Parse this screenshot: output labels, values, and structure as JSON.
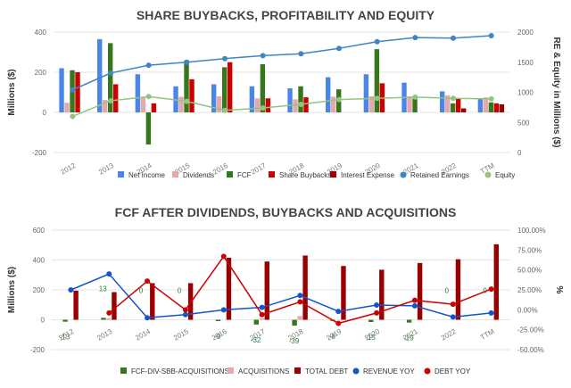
{
  "chart_data": [
    {
      "type": "bar",
      "title": "SHARE BUYBACKS, PROFITABILITY AND EQUITY",
      "ylabel": "Millions ($)",
      "y2label": "RE & Equity in Millions ($)",
      "ylim": [
        -200,
        400
      ],
      "y2lim": [
        0,
        2000
      ],
      "yticks": [
        "400",
        "200",
        "0",
        "-200"
      ],
      "y2ticks": [
        "2000",
        "1500",
        "1000",
        "500",
        "0"
      ],
      "categories": [
        "2012",
        "2013",
        "2014",
        "2015",
        "2016",
        "2017",
        "2018",
        "2019",
        "2020",
        "2021",
        "2022",
        "TTM"
      ],
      "legend_position": "bottom",
      "series": [
        {
          "name": "Net Income",
          "kind": "bar",
          "axis": "left",
          "color": "#4a86e8",
          "values": [
            220,
            365,
            190,
            130,
            140,
            130,
            120,
            175,
            190,
            148,
            105,
            70
          ]
        },
        {
          "name": "Dividends",
          "kind": "bar",
          "axis": "left",
          "color": "#e6a8a8",
          "values": [
            48,
            62,
            75,
            78,
            80,
            70,
            65,
            78,
            80,
            80,
            85,
            75
          ]
        },
        {
          "name": "FCF",
          "kind": "bar",
          "axis": "left",
          "color": "#38761d",
          "values": [
            210,
            345,
            -160,
            260,
            225,
            240,
            130,
            115,
            315,
            70,
            45,
            50
          ]
        },
        {
          "name": "Share Buybacks",
          "kind": "bar",
          "axis": "left",
          "color": "#cc0000",
          "values": [
            200,
            140,
            45,
            165,
            250,
            70,
            75,
            0,
            145,
            0,
            70,
            45
          ]
        },
        {
          "name": "Interest Expense",
          "kind": "bar",
          "axis": "left",
          "color": "#990000",
          "values": [
            0,
            0,
            0,
            0,
            0,
            0,
            0,
            0,
            0,
            0,
            20,
            40
          ]
        },
        {
          "name": "Retained Earnings",
          "kind": "line",
          "axis": "right",
          "color": "#3d85c6",
          "values": [
            1040,
            1320,
            1450,
            1500,
            1560,
            1610,
            1640,
            1730,
            1840,
            1910,
            1900,
            1940
          ]
        },
        {
          "name": "Equity",
          "kind": "line",
          "axis": "right",
          "color": "#93c47d",
          "values": [
            600,
            860,
            930,
            850,
            700,
            740,
            800,
            880,
            900,
            920,
            900,
            890
          ]
        }
      ]
    },
    {
      "type": "bar",
      "title": "FCF AFTER DIVIDENDS, BUYBACKS AND ACQUISITIONS",
      "ylabel": "Millions ($)",
      "y2label": "%",
      "ylim": [
        -200,
        600
      ],
      "y2lim": [
        -50,
        100
      ],
      "yticks": [
        "600",
        "400",
        "200",
        "0",
        "-200"
      ],
      "y2ticks": [
        "100.00%",
        "75.00%",
        "50.00%",
        "25.00%",
        "0.00%",
        "-25.00%",
        "-50.00%"
      ],
      "categories": [
        "2012",
        "2013",
        "2014",
        "2015",
        "2016",
        "2017",
        "2018",
        "2019",
        "2020",
        "2021",
        "2022",
        "TTM"
      ],
      "legend_position": "bottom",
      "series": [
        {
          "name": "FCF-DIV-SBB-ACQUISITIONS",
          "kind": "bar",
          "axis": "left",
          "color": "#38761d",
          "values": [
            -13,
            13,
            0,
            0,
            -9,
            -32,
            -39,
            -8,
            -15,
            -19,
            0,
            0
          ]
        },
        {
          "name": "ACQUISITIONS",
          "kind": "bar",
          "axis": "left",
          "color": "#e6a8a8",
          "values": [
            0,
            10,
            0,
            0,
            0,
            10,
            25,
            0,
            0,
            0,
            0,
            0
          ]
        },
        {
          "name": "TOTAL DEBT",
          "kind": "bar",
          "axis": "left",
          "color": "#990000",
          "values": [
            195,
            185,
            245,
            245,
            415,
            390,
            430,
            360,
            335,
            380,
            405,
            505
          ]
        },
        {
          "name": "REVENUE YOY",
          "kind": "line",
          "axis": "right",
          "color": "#1155cc",
          "values": [
            25,
            45,
            -10,
            -6,
            0,
            3,
            18,
            -2,
            6,
            5,
            -9,
            -4
          ]
        },
        {
          "name": "DEBT YOY",
          "kind": "line",
          "axis": "right",
          "color": "#cc0000",
          "values": [
            null,
            -4,
            36,
            0,
            67,
            -6,
            10,
            -17,
            -4,
            12,
            7,
            26
          ]
        }
      ],
      "data_labels": [
        "-13",
        "13",
        "0",
        "0",
        "-9",
        "-32",
        "-39",
        "-8",
        "-15",
        "-19",
        "0",
        "0"
      ]
    }
  ]
}
